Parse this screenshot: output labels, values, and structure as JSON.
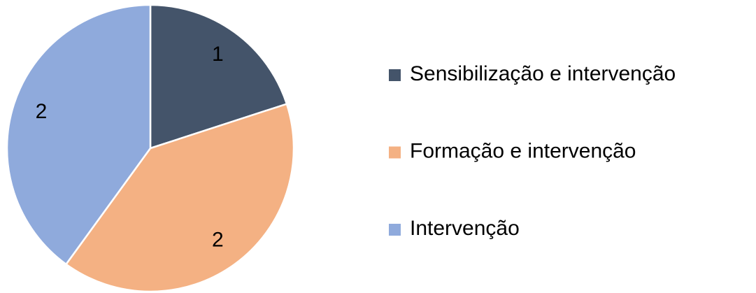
{
  "chart_data": {
    "type": "pie",
    "categories": [
      "Sensibilização e intervenção",
      "Formação e intervenção",
      "Intervenção"
    ],
    "values": [
      1,
      2,
      2
    ],
    "colors": [
      "#44546a",
      "#f4b183",
      "#8faadc"
    ],
    "legend": "right"
  }
}
